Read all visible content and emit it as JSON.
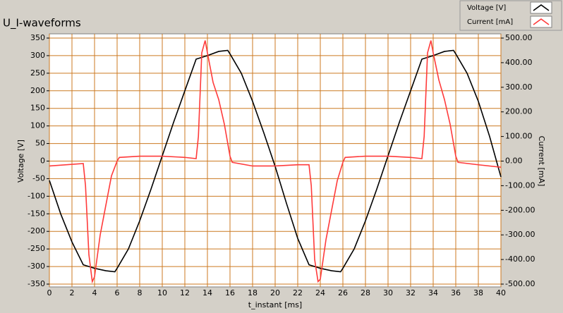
{
  "chart_data": {
    "type": "line",
    "title": "U_I-waveforms",
    "x_label": "t_instant [ms]",
    "y_label": "Voltage [V]",
    "y2_label": "Current [mA]",
    "xlim": [
      0,
      40
    ],
    "xticks": [
      0,
      2,
      4,
      6,
      8,
      10,
      12,
      14,
      16,
      18,
      20,
      22,
      24,
      26,
      28,
      30,
      32,
      34,
      36,
      38,
      40
    ],
    "ylim": [
      -350,
      350
    ],
    "yticks": [
      -350,
      -300,
      -250,
      -200,
      -150,
      -100,
      -50,
      0,
      50,
      100,
      150,
      200,
      250,
      300,
      350
    ],
    "y2lim": [
      -500,
      500
    ],
    "y2ticks": [
      {
        "value": -500,
        "label": "-500.00"
      },
      {
        "value": -400,
        "label": "-400.00"
      },
      {
        "value": -300,
        "label": "-300.00"
      },
      {
        "value": -200,
        "label": "-200.00"
      },
      {
        "value": -100,
        "label": "-100.00"
      },
      {
        "value": 0,
        "label": "0.00"
      },
      {
        "value": 100,
        "label": "100.00"
      },
      {
        "value": 200,
        "label": "200.00"
      },
      {
        "value": 300,
        "label": "300.00"
      },
      {
        "value": 400,
        "label": "400.00"
      },
      {
        "value": 500,
        "label": "500.00"
      }
    ],
    "grid": true,
    "legend": "top-right",
    "series": [
      {
        "name": "Voltage [V]",
        "color": "#000000",
        "x": [
          0,
          1,
          2,
          3,
          4,
          5,
          5.8,
          6,
          7,
          8,
          9,
          10,
          11,
          12,
          13,
          14,
          15,
          15.8,
          16,
          17,
          18,
          19,
          20,
          21,
          22,
          23,
          24,
          25,
          25.8,
          26,
          27,
          28,
          29,
          30,
          31,
          32,
          33,
          34,
          35,
          35.8,
          36,
          37,
          38,
          39,
          40
        ],
        "values": [
          -55,
          -150,
          -230,
          -295,
          -305,
          -312,
          -315,
          -305,
          -250,
          -170,
          -80,
          15,
          110,
          200,
          290,
          300,
          312,
          315,
          305,
          250,
          170,
          80,
          -15,
          -120,
          -220,
          -295,
          -305,
          -312,
          -315,
          -305,
          -250,
          -170,
          -80,
          15,
          110,
          200,
          290,
          300,
          312,
          315,
          305,
          250,
          170,
          70,
          -45
        ]
      },
      {
        "name": "Current [mA]",
        "color": "#ff3b3b",
        "x": [
          0,
          3,
          3.2,
          3.5,
          3.8,
          4,
          4.5,
          5,
          5.5,
          6,
          6.2,
          8,
          10,
          12,
          13,
          13.2,
          13.5,
          13.8,
          14,
          14.5,
          15,
          15.5,
          16,
          16.2,
          18,
          20,
          22,
          23,
          23.2,
          23.5,
          23.8,
          24,
          24.5,
          25,
          25.5,
          26,
          26.2,
          28,
          30,
          32,
          33,
          33.2,
          33.5,
          33.8,
          34,
          34.5,
          35,
          35.5,
          36,
          36.2,
          38,
          40
        ],
        "values": [
          -20,
          -10,
          -100,
          -380,
          -490,
          -470,
          -300,
          -180,
          -60,
          0,
          15,
          20,
          20,
          15,
          10,
          100,
          440,
          490,
          440,
          320,
          250,
          150,
          20,
          -5,
          -20,
          -20,
          -15,
          -15,
          -100,
          -400,
          -490,
          -480,
          -320,
          -200,
          -80,
          -5,
          15,
          20,
          20,
          15,
          10,
          100,
          440,
          490,
          440,
          330,
          250,
          150,
          20,
          -5,
          -15,
          -25
        ],
        "axis": "y2"
      }
    ]
  }
}
